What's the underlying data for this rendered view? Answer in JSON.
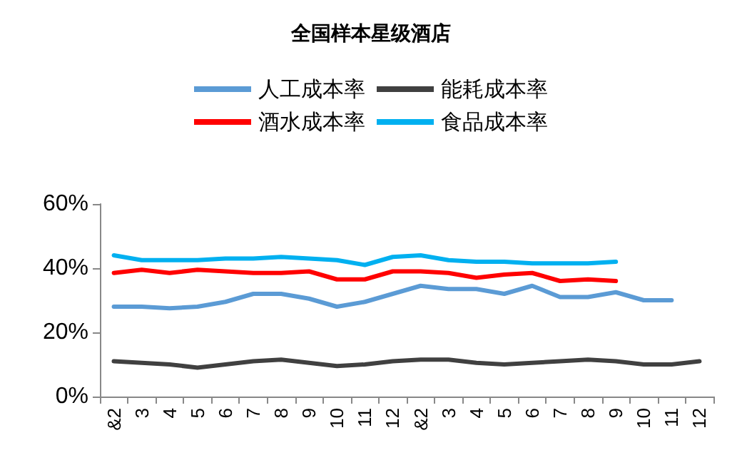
{
  "chart_data": {
    "type": "line",
    "title": "全国样本星级酒店",
    "categories": [
      "&2",
      "3",
      "4",
      "5",
      "6",
      "7",
      "8",
      "9",
      "10",
      "11",
      "12",
      "&2",
      "3",
      "4",
      "5",
      "6",
      "7",
      "8",
      "9",
      "10",
      "11",
      "12"
    ],
    "series": [
      {
        "name": "人工成本率",
        "color": "#5b9bd5",
        "values": [
          28,
          28,
          27.5,
          28,
          29.5,
          32,
          32,
          30.5,
          28,
          29.5,
          32,
          34.5,
          33.5,
          33.5,
          32,
          34.5,
          31,
          31,
          32.5,
          30,
          30,
          null
        ]
      },
      {
        "name": "能耗成本率",
        "color": "#404040",
        "values": [
          11,
          10.5,
          10,
          9,
          10,
          11,
          11.5,
          10.5,
          9.5,
          10,
          11,
          11.5,
          11.5,
          10.5,
          10,
          10.5,
          11,
          11.5,
          11,
          10,
          10,
          11
        ]
      },
      {
        "name": "酒水成本率",
        "color": "#ff0000",
        "values": [
          38.5,
          39.5,
          38.5,
          39.5,
          39,
          38.5,
          38.5,
          39,
          36.5,
          36.5,
          39,
          39,
          38.5,
          37,
          38,
          38.5,
          36,
          36.5,
          36,
          null,
          null,
          null
        ]
      },
      {
        "name": "食品成本率",
        "color": "#00b0f0",
        "values": [
          44,
          42.5,
          42.5,
          42.5,
          43,
          43,
          43.5,
          43,
          42.5,
          41,
          43.5,
          44,
          42.5,
          42,
          42,
          41.5,
          41.5,
          41.5,
          42,
          null,
          null,
          null
        ]
      }
    ],
    "ylim": [
      0,
      60
    ],
    "yticks": [
      {
        "value": 0,
        "label": "0%"
      },
      {
        "value": 20,
        "label": "20%"
      },
      {
        "value": 40,
        "label": "40%"
      },
      {
        "value": 60,
        "label": "60%"
      }
    ],
    "grid": false,
    "legend": "top",
    "marker": "none",
    "line_style": "solid"
  }
}
